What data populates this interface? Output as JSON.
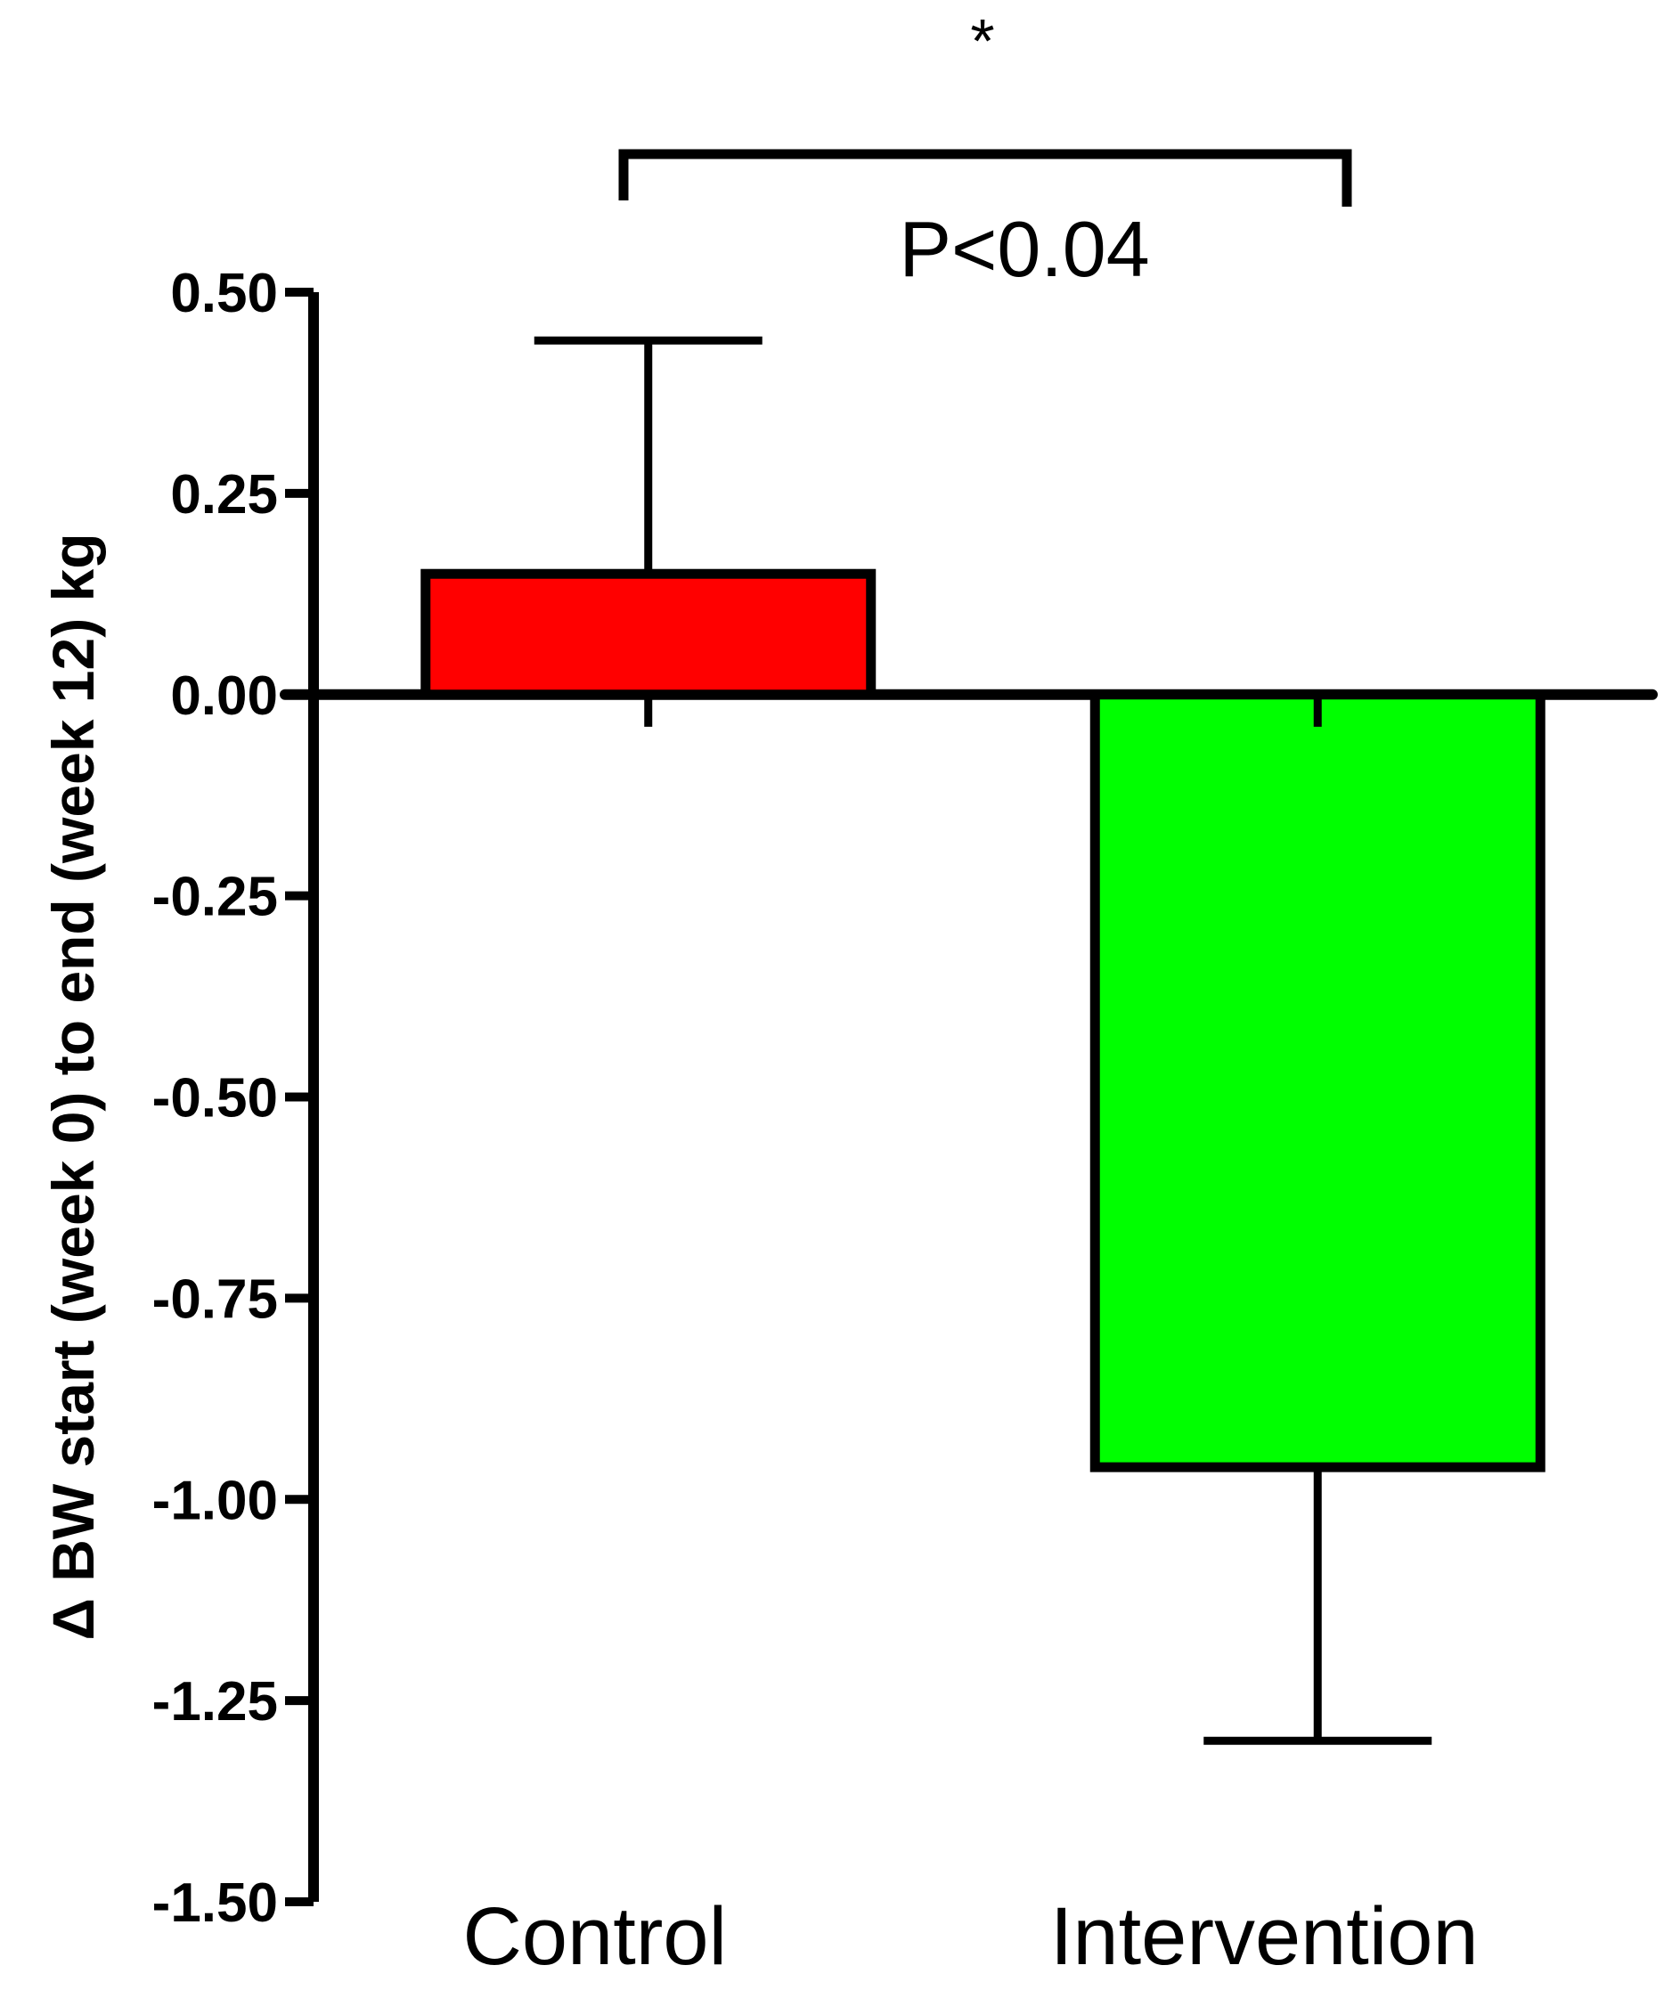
{
  "chart_data": {
    "type": "bar",
    "categories": [
      "Control",
      "Intervention"
    ],
    "values": [
      0.15,
      -0.96
    ],
    "error_upper": [
      0.44,
      -1.3
    ],
    "error_lower": [
      -0.04,
      -0.04
    ],
    "colors": [
      "#ff0000",
      "#00ff00"
    ],
    "title": "",
    "xlabel": "",
    "ylabel": "Δ BW start (week 0) to end (week 12) kg",
    "ylim": [
      -1.5,
      0.5
    ],
    "yticks": [
      0.5,
      0.25,
      0.0,
      -0.25,
      -0.5,
      -0.75,
      -1.0,
      -1.25,
      -1.5
    ],
    "ytick_labels": [
      "0.50",
      "0.25",
      "0.00",
      "-0.25",
      "-0.50",
      "-0.75",
      "-1.00",
      "-1.25",
      "-1.50"
    ],
    "grid": false,
    "annotations": {
      "significance_star": "*",
      "p_value": "P<0.04"
    }
  }
}
